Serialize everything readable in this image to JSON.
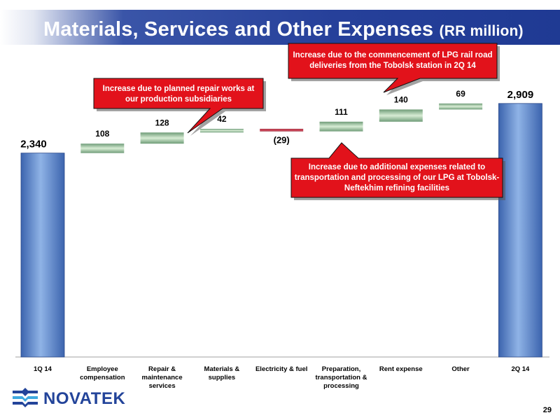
{
  "header": {
    "title": "Materials, Services and Other Expenses",
    "subtitle": "(RR million)"
  },
  "chart_data": {
    "type": "bar",
    "categories": [
      "1Q 14",
      "Employee compensation",
      "Repair & maintenance services",
      "Materials & supplies",
      "Electricity & fuel",
      "Preparation, transportation & processing",
      "Rent expense",
      "Other",
      "2Q 14"
    ],
    "category_lines": [
      [
        "1Q 14"
      ],
      [
        "Employee",
        "compensation"
      ],
      [
        "Repair &",
        "maintenance",
        "services"
      ],
      [
        "Materials &",
        "supplies"
      ],
      [
        "Electricity & fuel"
      ],
      [
        "Preparation,",
        "transportation &",
        "processing"
      ],
      [
        "Rent expense"
      ],
      [
        "Other"
      ],
      [
        "2Q 14"
      ]
    ],
    "values": [
      2340,
      108,
      128,
      42,
      -29,
      111,
      140,
      69,
      2909
    ],
    "labels": [
      "2,340",
      "108",
      "128",
      "42",
      "(29)",
      "111",
      "140",
      "69",
      "2,909"
    ],
    "kinds": [
      "total",
      "delta",
      "delta",
      "delta",
      "delta",
      "delta",
      "delta",
      "delta",
      "total"
    ],
    "colors": {
      "total": "#5b87c9",
      "increase": "#8fb892",
      "decrease": "#b8293a"
    }
  },
  "callouts": [
    {
      "text": "Increase due to planned repair works at our production subsidiaries"
    },
    {
      "text": "Increase due to the commencement of LPG rail road deliveries from the Tobolsk station in 2Q 14"
    },
    {
      "text": "Increase due to additional expenses related to transportation and processing of our LPG at Tobolsk-Neftekhim refining facilities"
    }
  ],
  "footer": {
    "logo_text": "NOVATEK",
    "page_number": "29"
  }
}
